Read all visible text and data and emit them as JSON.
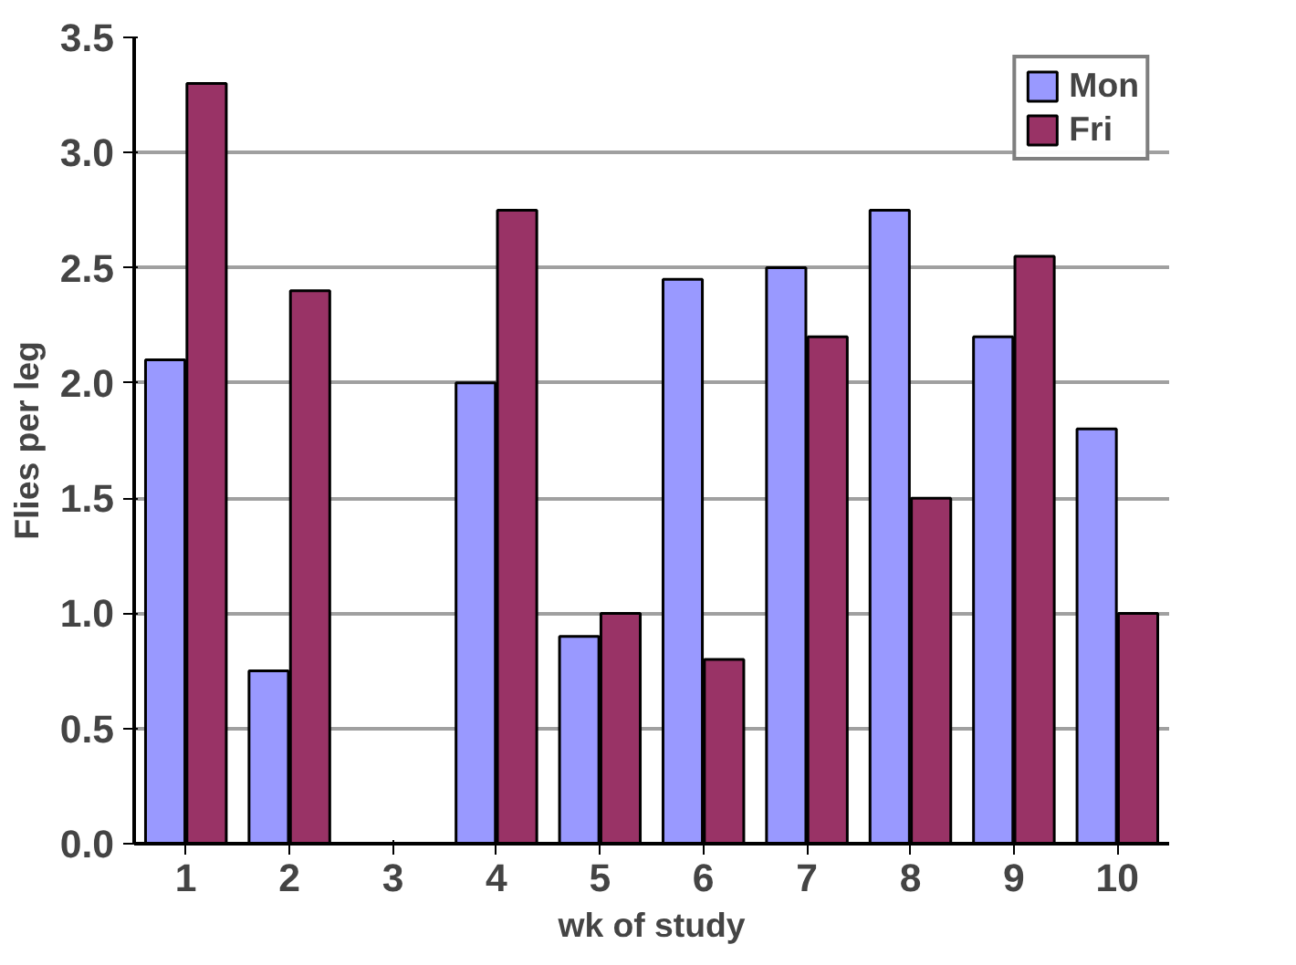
{
  "chart_data": {
    "type": "bar",
    "xlabel": "wk of study",
    "ylabel": "Flies per leg",
    "categories": [
      "1",
      "2",
      "3",
      "4",
      "5",
      "6",
      "7",
      "8",
      "9",
      "10"
    ],
    "series": [
      {
        "name": "Mon",
        "color": "#9999ff",
        "values": [
          2.1,
          0.75,
          0,
          2.0,
          0.9,
          2.45,
          2.5,
          2.75,
          2.2,
          1.8
        ]
      },
      {
        "name": "Fri",
        "color": "#993366",
        "values": [
          3.3,
          2.4,
          0,
          2.75,
          1.0,
          0.8,
          2.2,
          1.5,
          2.55,
          1.0
        ]
      }
    ],
    "ylim": [
      0,
      3.5
    ],
    "yticks": [
      {
        "value": 0,
        "label": "0.0"
      },
      {
        "value": 0.5,
        "label": "0.5"
      },
      {
        "value": 1,
        "label": "1.0"
      },
      {
        "value": 1.5,
        "label": "1.5"
      },
      {
        "value": 2,
        "label": "2.0"
      },
      {
        "value": 2.5,
        "label": "2.5"
      },
      {
        "value": 3,
        "label": "3.0"
      },
      {
        "value": 3.5,
        "label": "3.5"
      }
    ],
    "grid": "y",
    "legend": "top right"
  }
}
